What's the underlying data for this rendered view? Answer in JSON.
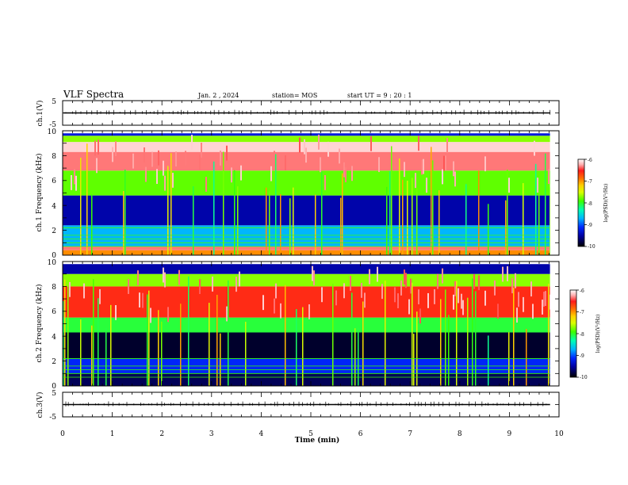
{
  "header": {
    "title": "VLF Spectra",
    "date": "Jan. 2 , 2024",
    "station": "station= MOS",
    "start": "start UT = 9 : 20 : 1"
  },
  "chart_data": [
    {
      "type": "line",
      "title": "",
      "ylabel": "ch.1(V)",
      "ylim": [
        -5,
        5
      ],
      "yticks": [
        "5",
        "-5"
      ],
      "xlim": [
        0,
        10
      ],
      "description_level": 0
    },
    {
      "type": "heatmap",
      "ylabel": "ch.1 Frequency (kHz)",
      "ylim": [
        0,
        10
      ],
      "yticks": [
        "0",
        "2",
        "4",
        "6",
        "8",
        "10"
      ],
      "xlim": [
        0,
        10
      ],
      "xticks": [
        "0",
        "1",
        "2",
        "3",
        "4",
        "5",
        "6",
        "7",
        "8",
        "9",
        "10"
      ],
      "data_xmax": 9.82,
      "colorbar": {
        "label": "log(PSD)(V²/Hz)",
        "range": [
          -10,
          -6
        ],
        "ticks": [
          "-6",
          "-7",
          "-8",
          "-9",
          "-10"
        ]
      },
      "bands": [
        {
          "from_khz": 0,
          "to_khz": 0.4,
          "level": -7.2
        },
        {
          "from_khz": 0.4,
          "to_khz": 0.7,
          "level": -6.5
        },
        {
          "from_khz": 0.7,
          "to_khz": 2.4,
          "level": -8.9
        },
        {
          "from_khz": 2.4,
          "to_khz": 4.8,
          "level": -9.6
        },
        {
          "from_khz": 4.8,
          "to_khz": 6.8,
          "level": -8.1
        },
        {
          "from_khz": 6.8,
          "to_khz": 8.3,
          "level": -6.5
        },
        {
          "from_khz": 8.3,
          "to_khz": 9.1,
          "level": -6.2
        },
        {
          "from_khz": 9.1,
          "to_khz": 9.6,
          "level": -8.0
        },
        {
          "from_khz": 9.6,
          "to_khz": 9.8,
          "level": -9.4
        }
      ]
    },
    {
      "type": "heatmap",
      "ylabel": "ch.2 Frequency (kHz)",
      "ylim": [
        0,
        10
      ],
      "yticks": [
        "0",
        "2",
        "4",
        "6",
        "8",
        "10"
      ],
      "xlim": [
        0,
        10
      ],
      "xticks": [
        "0",
        "1",
        "2",
        "3",
        "4",
        "5",
        "6",
        "7",
        "8",
        "9",
        "10"
      ],
      "data_xmax": 9.82,
      "colorbar": {
        "label": "log(PSD)(V²/Hz)",
        "range": [
          -10,
          -6
        ],
        "ticks": [
          "-6",
          "-7",
          "-8",
          "-9",
          "-10"
        ]
      },
      "bands": [
        {
          "from_khz": 0,
          "to_khz": 1.0,
          "level": -9.8
        },
        {
          "from_khz": 1.0,
          "to_khz": 2.2,
          "level": -9.3
        },
        {
          "from_khz": 2.2,
          "to_khz": 4.3,
          "level": -9.9
        },
        {
          "from_khz": 4.3,
          "to_khz": 5.5,
          "level": -8.3
        },
        {
          "from_khz": 5.5,
          "to_khz": 8.0,
          "level": -6.8
        },
        {
          "from_khz": 8.0,
          "to_khz": 9.0,
          "level": -8.0
        },
        {
          "from_khz": 9.0,
          "to_khz": 9.8,
          "level": -9.6
        }
      ]
    },
    {
      "type": "line",
      "title": "",
      "ylabel": "ch.3(V)",
      "ylim": [
        -5,
        5
      ],
      "yticks": [
        "5",
        "-5"
      ],
      "xlim": [
        0,
        10
      ],
      "xlabel": "Time (min)",
      "xticks": [
        "0",
        "1",
        "2",
        "3",
        "4",
        "5",
        "6",
        "7",
        "8",
        "9",
        "10"
      ],
      "description_level": 0
    }
  ],
  "colors": {
    "palette": [
      "#000000",
      "#0000a0",
      "#0028ff",
      "#00b4ff",
      "#00ffb4",
      "#3cff00",
      "#d8ff00",
      "#ffd000",
      "#ff7000",
      "#ff1a1a",
      "#ffb0b0",
      "#ffffff"
    ]
  }
}
